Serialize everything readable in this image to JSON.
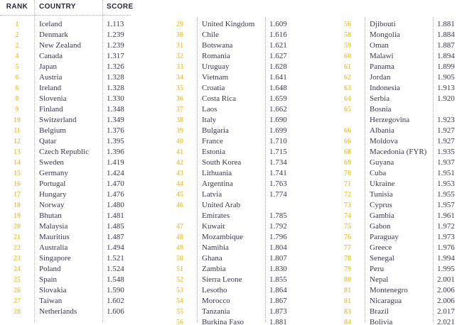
{
  "colors": {
    "rank_accent": "#EDCB52",
    "body_text": "#3C3850",
    "header_text": "#2B2836",
    "divider": "#BDBDBD",
    "background": "#FFFFFF"
  },
  "chart_data": {
    "type": "table",
    "headers": {
      "rank": "RANK",
      "country": "COUNTRY",
      "score": "SCORE"
    },
    "column_groups": [
      {
        "rows": [
          {
            "rank": "1",
            "country": "Iceland",
            "score": "1.113"
          },
          {
            "rank": "2",
            "country": "Denmark",
            "score": "1.239"
          },
          {
            "rank": "2",
            "country": "New Zealand",
            "score": "1.239"
          },
          {
            "rank": "4",
            "country": "Canada",
            "score": "1.317"
          },
          {
            "rank": "5",
            "country": "Japan",
            "score": "1.326"
          },
          {
            "rank": "6",
            "country": "Austria",
            "score": "1.328"
          },
          {
            "rank": "6",
            "country": "Ireland",
            "score": "1.328"
          },
          {
            "rank": "8",
            "country": "Slovenia",
            "score": "1.330"
          },
          {
            "rank": "9",
            "country": "Finland",
            "score": "1.348"
          },
          {
            "rank": "10",
            "country": "Switzerland",
            "score": "1.349"
          },
          {
            "rank": "11",
            "country": "Belgium",
            "score": "1.376"
          },
          {
            "rank": "12",
            "country": "Qatar",
            "score": "1.395"
          },
          {
            "rank": "13",
            "country": "Czech Republic",
            "score": "1.396"
          },
          {
            "rank": "14",
            "country": "Sweden",
            "score": "1.419"
          },
          {
            "rank": "15",
            "country": "Germany",
            "score": "1.424"
          },
          {
            "rank": "16",
            "country": "Portugal",
            "score": "1.470"
          },
          {
            "rank": "17",
            "country": "Hungary",
            "score": "1.476"
          },
          {
            "rank": "18",
            "country": "Norway",
            "score": "1.480"
          },
          {
            "rank": "19",
            "country": "Bhutan",
            "score": "1.481"
          },
          {
            "rank": "20",
            "country": "Malaysia",
            "score": "1.485"
          },
          {
            "rank": "21",
            "country": "Mauritius",
            "score": "1.487"
          },
          {
            "rank": "22",
            "country": "Australia",
            "score": "1.494"
          },
          {
            "rank": "23",
            "country": "Singapore",
            "score": "1.521"
          },
          {
            "rank": "24",
            "country": "Poland",
            "score": "1.524"
          },
          {
            "rank": "25",
            "country": "Spain",
            "score": "1.548"
          },
          {
            "rank": "26",
            "country": "Slovakia",
            "score": "1.590"
          },
          {
            "rank": "27",
            "country": "Taiwan",
            "score": "1.602"
          },
          {
            "rank": "28",
            "country": "Netherlands",
            "score": "1.606"
          }
        ]
      },
      {
        "rows": [
          {
            "rank": "29",
            "country": "United Kingdom",
            "score": "1.609"
          },
          {
            "rank": "30",
            "country": "Chile",
            "score": "1.616"
          },
          {
            "rank": "31",
            "country": "Botswana",
            "score": "1.621"
          },
          {
            "rank": "32",
            "country": "Romania",
            "score": "1.627"
          },
          {
            "rank": "33",
            "country": "Uruguay",
            "score": "1.628"
          },
          {
            "rank": "34",
            "country": "Vietnam",
            "score": "1.641"
          },
          {
            "rank": "35",
            "country": "Croatia",
            "score": "1.648"
          },
          {
            "rank": "36",
            "country": "Costa Rica",
            "score": "1.659"
          },
          {
            "rank": "37",
            "country": "Laos",
            "score": "1.662"
          },
          {
            "rank": "38",
            "country": "Italy",
            "score": "1.690"
          },
          {
            "rank": "39",
            "country": "Bulgaria",
            "score": "1.699"
          },
          {
            "rank": "40",
            "country": "France",
            "score": "1.710"
          },
          {
            "rank": "41",
            "country": "Estonia",
            "score": "1.715"
          },
          {
            "rank": "42",
            "country": "South Korea",
            "score": "1.734"
          },
          {
            "rank": "43",
            "country": "Lithuania",
            "score": "1.741"
          },
          {
            "rank": "44",
            "country": "Argentina",
            "score": "1.763"
          },
          {
            "rank": "45",
            "country": "Latvia",
            "score": "1.774"
          },
          {
            "rank": "46",
            "country": "United Arab\nEmirates",
            "score": "1.785"
          },
          {
            "rank": "47",
            "country": "Kuwait",
            "score": "1.792"
          },
          {
            "rank": "48",
            "country": "Mozambique",
            "score": "1.796"
          },
          {
            "rank": "49",
            "country": "Namibia",
            "score": "1.804"
          },
          {
            "rank": "50",
            "country": "Ghana",
            "score": "1.807"
          },
          {
            "rank": "51",
            "country": "Zambia",
            "score": "1.830"
          },
          {
            "rank": "52",
            "country": "Sierra Leone",
            "score": "1.855"
          },
          {
            "rank": "53",
            "country": "Lesotho",
            "score": "1.864"
          },
          {
            "rank": "54",
            "country": "Morocco",
            "score": "1.867"
          },
          {
            "rank": "55",
            "country": "Tanzania",
            "score": "1.873"
          },
          {
            "rank": "56",
            "country": "Burkina Faso",
            "score": "1.881"
          }
        ]
      },
      {
        "rows": [
          {
            "rank": "56",
            "country": "Djibouti",
            "score": "1.881"
          },
          {
            "rank": "58",
            "country": "Mongolia",
            "score": "1.884"
          },
          {
            "rank": "59",
            "country": "Oman",
            "score": "1.887"
          },
          {
            "rank": "60",
            "country": "Malawi",
            "score": "1.894"
          },
          {
            "rank": "61",
            "country": "Panama",
            "score": "1.899"
          },
          {
            "rank": "62",
            "country": "Jordan",
            "score": "1.905"
          },
          {
            "rank": "63",
            "country": "Indonesia",
            "score": "1.913"
          },
          {
            "rank": "64",
            "country": "Serbia",
            "score": "1.920"
          },
          {
            "rank": "65",
            "country": "Bosnia\nHerzegovina",
            "score": "1.923"
          },
          {
            "rank": "66",
            "country": "Albania",
            "score": "1.927"
          },
          {
            "rank": "66",
            "country": "Moldova",
            "score": "1.927"
          },
          {
            "rank": "68",
            "country": "Macedonia (FYR)",
            "score": "1.935"
          },
          {
            "rank": "69",
            "country": "Guyana",
            "score": "1.937"
          },
          {
            "rank": "70",
            "country": "Cuba",
            "score": "1.951"
          },
          {
            "rank": "71",
            "country": "Ukraine",
            "score": "1.953"
          },
          {
            "rank": "72",
            "country": "Tunisia",
            "score": "1.955"
          },
          {
            "rank": "73",
            "country": "Cyprus",
            "score": "1.957"
          },
          {
            "rank": "74",
            "country": "Gambia",
            "score": "1.961"
          },
          {
            "rank": "75",
            "country": "Gabon",
            "score": "1.972"
          },
          {
            "rank": "76",
            "country": "Paraguay",
            "score": "1.973"
          },
          {
            "rank": "77",
            "country": "Greece",
            "score": "1.976"
          },
          {
            "rank": "78",
            "country": "Senegal",
            "score": "1.994"
          },
          {
            "rank": "79",
            "country": "Peru",
            "score": "1.995"
          },
          {
            "rank": "80",
            "country": "Nepal",
            "score": "2.001"
          },
          {
            "rank": "81",
            "country": "Montenegro",
            "score": "2.006"
          },
          {
            "rank": "81",
            "country": "Nicaragua",
            "score": "2.006"
          },
          {
            "rank": "83",
            "country": "Brazil",
            "score": "2.017"
          },
          {
            "rank": "84",
            "country": "Bolivia",
            "score": "2.021"
          }
        ]
      }
    ]
  }
}
